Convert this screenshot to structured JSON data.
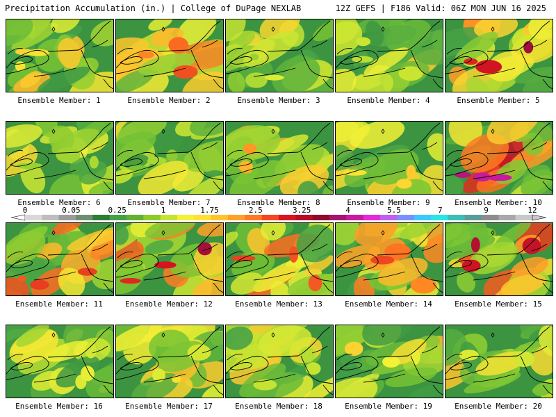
{
  "header": {
    "left": "Precipitation Accumulation (in.) | College of DuPage NEXLAB",
    "right": "12Z GEFS | F186 Valid: 06Z MON JUN 16 2025"
  },
  "members": [
    {
      "label": "Ensemble Member: 1"
    },
    {
      "label": "Ensemble Member: 2"
    },
    {
      "label": "Ensemble Member: 3"
    },
    {
      "label": "Ensemble Member: 4"
    },
    {
      "label": "Ensemble Member: 5"
    },
    {
      "label": "Ensemble Member: 6"
    },
    {
      "label": "Ensemble Member: 7"
    },
    {
      "label": "Ensemble Member: 8"
    },
    {
      "label": "Ensemble Member: 9"
    },
    {
      "label": "Ensemble Member: 10"
    },
    {
      "label": "Ensemble Member: 11"
    },
    {
      "label": "Ensemble Member: 12"
    },
    {
      "label": "Ensemble Member: 13"
    },
    {
      "label": "Ensemble Member: 14"
    },
    {
      "label": "Ensemble Member: 15"
    },
    {
      "label": "Ensemble Member: 16"
    },
    {
      "label": "Ensemble Member: 17"
    },
    {
      "label": "Ensemble Member: 18"
    },
    {
      "label": "Ensemble Member: 19"
    },
    {
      "label": "Ensemble Member: 20"
    }
  ],
  "colorbar": {
    "ticks": [
      "0",
      "0.05",
      "0.25",
      "1",
      "1.75",
      "2.5",
      "3.25",
      "4",
      "5.5",
      "7",
      "9",
      "12"
    ],
    "colors": [
      "#d8d8d8",
      "#bdbdbd",
      "#9c9c9c",
      "#6e8f6e",
      "#2e7d32",
      "#43a047",
      "#5fb12f",
      "#8ccc2a",
      "#c4e332",
      "#f2f236",
      "#ffe033",
      "#ffc32e",
      "#ffa028",
      "#ff7a22",
      "#f5461e",
      "#d8141e",
      "#b40f24",
      "#8e0c2a",
      "#a3166e",
      "#c81aa0",
      "#e629d8",
      "#c060f0",
      "#7890ff",
      "#3cc8ff",
      "#28e6e6",
      "#3cbeb4",
      "#5a9c96",
      "#8c8c8c",
      "#a8a8a8",
      "#c8c8c8"
    ]
  }
}
